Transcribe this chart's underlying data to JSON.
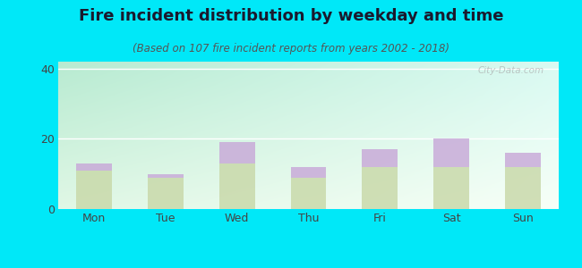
{
  "title": "Fire incident distribution by weekday and time",
  "subtitle": "(Based on 107 fire incident reports from years 2002 - 2018)",
  "categories": [
    "Mon",
    "Tue",
    "Wed",
    "Thu",
    "Fri",
    "Sat",
    "Sun"
  ],
  "pm_values": [
    11,
    9,
    13,
    9,
    12,
    12,
    12
  ],
  "am_values": [
    2,
    1,
    6,
    3,
    5,
    8,
    4
  ],
  "am_color": "#c8a8d8",
  "pm_color": "#c8d8a8",
  "ylim": [
    0,
    42
  ],
  "yticks": [
    0,
    20,
    40
  ],
  "outer_bg": "#00e8f8",
  "grid_color": "#ffffff",
  "watermark": "City-Data.com",
  "bar_width": 0.5,
  "title_fontsize": 13,
  "subtitle_fontsize": 8.5,
  "bg_colors": [
    "#c8e8d8",
    "#f0fff8"
  ],
  "bg_left_color": "#b8e8d8",
  "bg_right_color": "#f5fff8"
}
